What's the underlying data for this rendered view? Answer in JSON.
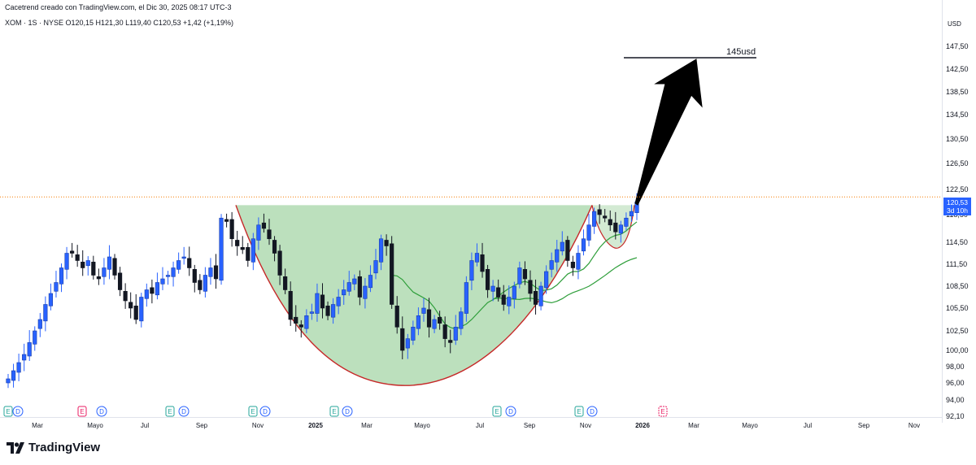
{
  "header": {
    "credit": "Cacetrend creado con TradingView.com, el Dic 30, 2025 08:17 UTC-3",
    "symbol_line": "XOM · 1S · NYSE  O120,15  H121,30  L119,40  C120,53  +1,42 (+1,19%)"
  },
  "price_axis": {
    "unit": "USD",
    "ticks": [
      "147,50",
      "142,50",
      "138,50",
      "134,50",
      "130,50",
      "126,50",
      "122,50",
      "118,50",
      "114,50",
      "111,50",
      "108,50",
      "105,50",
      "102,50",
      "100,00",
      "98,00",
      "96,00",
      "94,00",
      "92,10"
    ],
    "last_price": "120,53",
    "countdown": "3d 10h"
  },
  "time_axis": {
    "labels": [
      {
        "text": "Mar",
        "bold": false
      },
      {
        "text": "Mayo",
        "bold": false
      },
      {
        "text": "Jul",
        "bold": false
      },
      {
        "text": "Sep",
        "bold": false
      },
      {
        "text": "Nov",
        "bold": false
      },
      {
        "text": "2025",
        "bold": true
      },
      {
        "text": "Mar",
        "bold": false
      },
      {
        "text": "Mayo",
        "bold": false
      },
      {
        "text": "Jul",
        "bold": false
      },
      {
        "text": "Sep",
        "bold": false
      },
      {
        "text": "Nov",
        "bold": false
      },
      {
        "text": "2026",
        "bold": true
      },
      {
        "text": "Mar",
        "bold": false
      },
      {
        "text": "Mayo",
        "bold": false
      },
      {
        "text": "Jul",
        "bold": false
      },
      {
        "text": "Sep",
        "bold": false
      },
      {
        "text": "Nov",
        "bold": false
      }
    ]
  },
  "annotations": {
    "target_label": "145usd",
    "target_price": 145,
    "breakout_level": 120.0
  },
  "event_markers": [
    "E",
    "D",
    "E",
    "D",
    "E",
    "D",
    "E",
    "D",
    "E",
    "D",
    "E",
    "D",
    "E",
    "D",
    "E"
  ],
  "colors": {
    "up": "#2962ff",
    "down": "#131722",
    "cup_fill": "#a5d6a7",
    "cup_outline": "#c62828",
    "ma": "#2e9e3a",
    "price_line": "#f57c00",
    "tag": "#2962ff"
  },
  "brand": {
    "name": "TradingView"
  },
  "chart_data": {
    "type": "candlestick",
    "symbol": "XOM",
    "interval": "1S",
    "exchange": "NYSE",
    "last": {
      "open": 120.15,
      "high": 121.3,
      "low": 119.4,
      "close": 120.53,
      "change": 1.42,
      "change_pct": 1.19
    },
    "close_series": [
      96.5,
      97.5,
      98.5,
      99.5,
      101,
      102.5,
      104,
      106,
      107.5,
      109,
      111,
      113,
      113,
      112,
      111,
      112,
      110,
      109.5,
      111,
      112.5,
      110,
      108,
      106.5,
      105.5,
      104,
      107,
      108,
      107.5,
      109,
      109.5,
      110,
      111,
      112,
      112.5,
      111,
      109,
      108,
      110,
      111,
      109.5,
      118,
      117.5,
      115,
      114,
      113.5,
      112,
      115,
      117,
      116.5,
      115,
      113,
      110,
      108,
      104,
      103.5,
      103,
      104.5,
      105,
      107.5,
      105.5,
      104.5,
      106,
      107,
      108,
      109,
      109.5,
      107,
      108.5,
      110,
      112,
      115,
      114,
      106,
      103,
      100,
      101.5,
      103,
      104.5,
      105.5,
      103,
      104,
      103.5,
      101.5,
      101,
      103,
      105,
      109,
      112,
      113,
      110.5,
      108,
      108.5,
      107,
      106,
      107,
      108.5,
      111,
      109.5,
      107.5,
      106,
      108.5,
      110.5,
      112,
      113.5,
      114.5,
      112,
      111,
      113,
      115,
      117,
      119,
      118.5,
      118,
      117,
      116,
      117,
      118,
      119,
      120.53
    ],
    "moving_averages": [
      "short",
      "long"
    ]
  }
}
